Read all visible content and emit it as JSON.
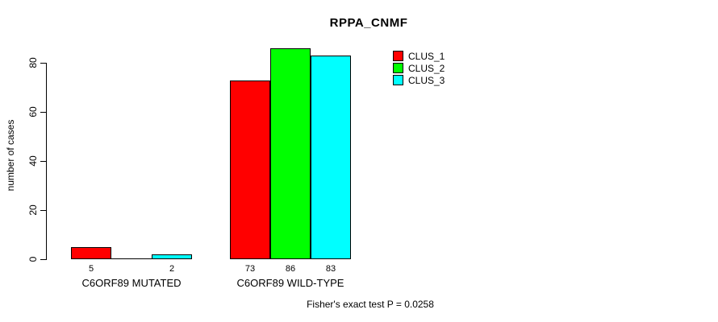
{
  "title": "RPPA_CNMF",
  "y_axis": {
    "label": "number of cases",
    "ticks": [
      0,
      20,
      40,
      60,
      80
    ]
  },
  "footnote": "Fisher's exact test P = 0.0258",
  "chart_data": {
    "type": "bar",
    "title": "RPPA_CNMF",
    "xlabel": "",
    "ylabel": "number of cases",
    "ylim": [
      0,
      86
    ],
    "yticks": [
      0,
      20,
      40,
      60,
      80
    ],
    "categories": [
      "C6ORF89 MUTATED",
      "C6ORF89 WILD-TYPE"
    ],
    "series": [
      {
        "name": "CLUS_1",
        "color": "#ff0000",
        "values": [
          5,
          73
        ]
      },
      {
        "name": "CLUS_2",
        "color": "#00ff00",
        "values": [
          0,
          86
        ]
      },
      {
        "name": "CLUS_3",
        "color": "#00ffff",
        "values": [
          2,
          83
        ]
      }
    ],
    "bar_value_labels_shown": [
      "5",
      "2",
      "73",
      "86",
      "83"
    ],
    "zero_bars_unlabeled": true,
    "legend_position": "top-right",
    "grid": false,
    "annotation": "Fisher's exact test P = 0.0258"
  }
}
